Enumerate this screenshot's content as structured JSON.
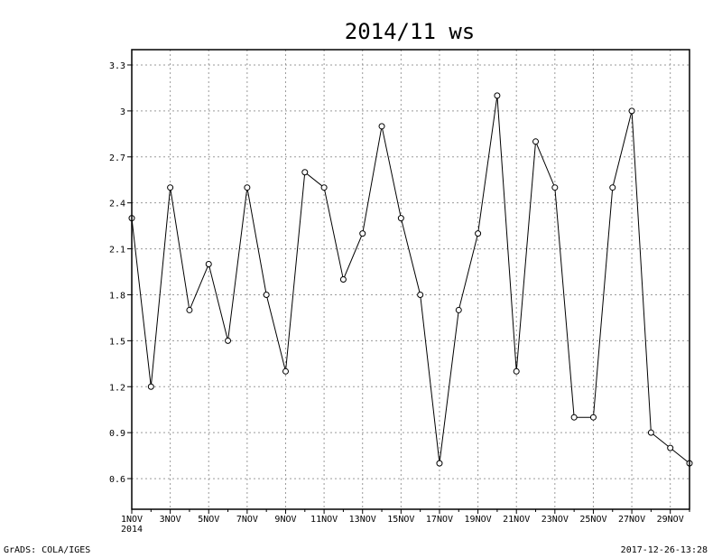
{
  "footer": {
    "left": "GrADS: COLA/IGES",
    "right": "2017-12-26-13:28"
  },
  "chart_data": {
    "type": "line",
    "title": "2014/11 ws",
    "xlabel": "",
    "ylabel": "",
    "x_tick_labels": [
      "1NOV",
      "3NOV",
      "5NOV",
      "7NOV",
      "9NOV",
      "11NOV",
      "13NOV",
      "15NOV",
      "17NOV",
      "19NOV",
      "21NOV",
      "23NOV",
      "25NOV",
      "27NOV",
      "29NOV"
    ],
    "x_tick_days": [
      1,
      3,
      5,
      7,
      9,
      11,
      13,
      15,
      17,
      19,
      21,
      23,
      25,
      27,
      29
    ],
    "x_sublabel": "2014",
    "xlim": [
      1,
      30
    ],
    "y_ticks": [
      0.6,
      0.9,
      1.2,
      1.5,
      1.8,
      2.1,
      2.4,
      2.7,
      3,
      3.3
    ],
    "y_tick_labels": [
      "0.6",
      "0.9",
      "1.2",
      "1.5",
      "1.8",
      "2.1",
      "2.4",
      "2.7",
      "3",
      "3.3"
    ],
    "ylim": [
      0.4,
      3.4
    ],
    "grid": true,
    "series": [
      {
        "x": [
          1,
          2,
          3,
          4,
          5,
          6,
          7,
          8,
          9,
          10,
          11,
          12,
          13,
          14,
          15,
          16,
          17,
          18,
          19,
          20,
          21,
          22,
          23,
          24,
          25,
          26,
          27,
          28,
          29,
          30
        ],
        "values": [
          2.3,
          1.2,
          2.5,
          1.7,
          2.0,
          1.5,
          2.5,
          1.8,
          1.3,
          2.6,
          2.5,
          1.9,
          2.2,
          2.9,
          2.3,
          1.8,
          0.7,
          1.7,
          2.2,
          3.1,
          1.3,
          2.8,
          2.5,
          1.0,
          1.0,
          2.5,
          3.0,
          0.9,
          0.8,
          0.7
        ]
      }
    ]
  }
}
